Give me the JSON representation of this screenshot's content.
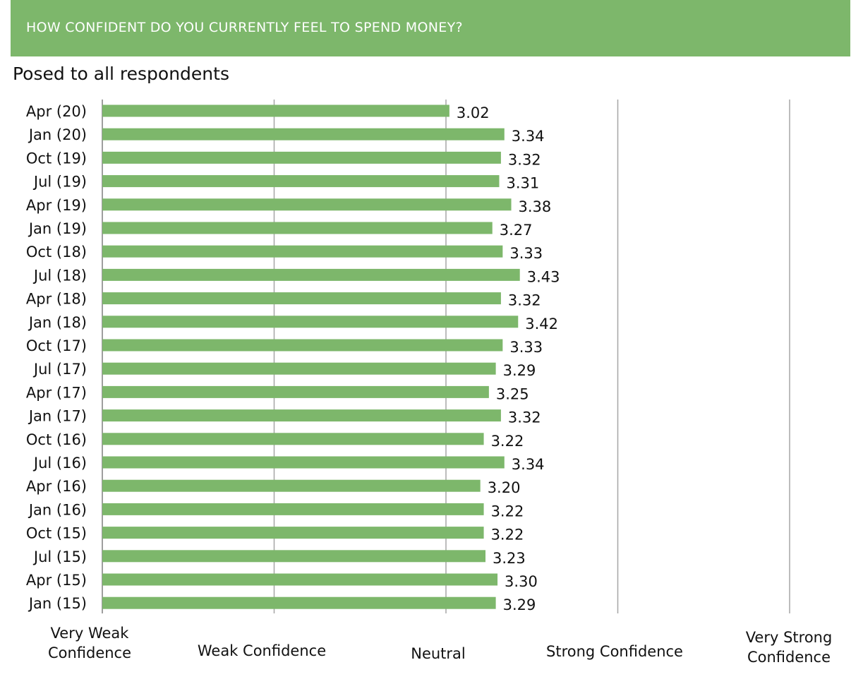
{
  "header": {
    "title": "HOW CONFIDENT DO YOU CURRENTLY FEEL TO SPEND MONEY?",
    "background": "#7db76b"
  },
  "subtitle": "Posed to all respondents",
  "chart_data": {
    "type": "bar",
    "orientation": "horizontal",
    "categories": [
      "Apr (20)",
      "Jan (20)",
      "Oct (19)",
      "Jul (19)",
      "Apr (19)",
      "Jan (19)",
      "Oct (18)",
      "Jul (18)",
      "Apr (18)",
      "Jan (18)",
      "Oct (17)",
      "Jul (17)",
      "Apr (17)",
      "Jan (17)",
      "Oct (16)",
      "Jul (16)",
      "Apr (16)",
      "Jan (16)",
      "Oct (15)",
      "Jul (15)",
      "Apr (15)",
      "Jan (15)"
    ],
    "values": [
      3.02,
      3.34,
      3.32,
      3.31,
      3.38,
      3.27,
      3.33,
      3.43,
      3.32,
      3.42,
      3.33,
      3.29,
      3.25,
      3.32,
      3.22,
      3.34,
      3.2,
      3.22,
      3.22,
      3.23,
      3.3,
      3.29
    ],
    "value_labels": [
      "3.02",
      "3.34",
      "3.32",
      "3.31",
      "3.38",
      "3.27",
      "3.33",
      "3.43",
      "3.32",
      "3.42",
      "3.33",
      "3.29",
      "3.25",
      "3.32",
      "3.22",
      "3.34",
      "3.20",
      "3.22",
      "3.22",
      "3.23",
      "3.30",
      "3.29"
    ],
    "xlim": [
      1,
      5
    ],
    "x_ticks": [
      {
        "value": 1,
        "label": [
          "Very Weak",
          "Confidence"
        ]
      },
      {
        "value": 2,
        "label": [
          "Weak Confidence"
        ]
      },
      {
        "value": 3,
        "label": [
          "Neutral"
        ]
      },
      {
        "value": 4,
        "label": [
          "Strong Confidence"
        ]
      },
      {
        "value": 5,
        "label": [
          "Very Strong",
          "Confidence"
        ]
      }
    ],
    "grid": true,
    "bar_color": "#7db76b",
    "grid_color": "#a6a6a6"
  }
}
